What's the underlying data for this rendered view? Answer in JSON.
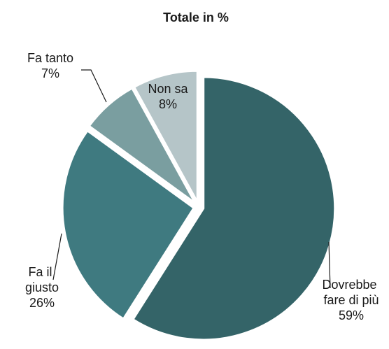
{
  "chart_data": {
    "type": "pie",
    "title": "Totale in %",
    "categories": [
      "Dovrebbe fare di più",
      "Fa il giusto",
      "Fa tanto",
      "Non sa"
    ],
    "values": [
      59,
      26,
      7,
      8
    ],
    "value_labels": [
      "59%",
      "26%",
      "7%",
      "8%"
    ],
    "colors": [
      "#346468",
      "#3f7a80",
      "#7a9ea0",
      "#b5c5c8"
    ]
  }
}
